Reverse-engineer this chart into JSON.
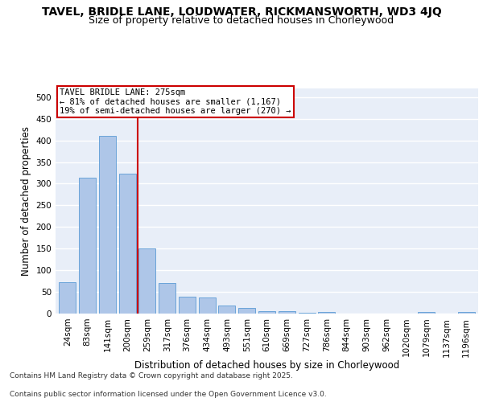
{
  "title": "TAVEL, BRIDLE LANE, LOUDWATER, RICKMANSWORTH, WD3 4JQ",
  "subtitle": "Size of property relative to detached houses in Chorleywood",
  "xlabel": "Distribution of detached houses by size in Chorleywood",
  "ylabel": "Number of detached properties",
  "categories": [
    "24sqm",
    "83sqm",
    "141sqm",
    "200sqm",
    "259sqm",
    "317sqm",
    "376sqm",
    "434sqm",
    "493sqm",
    "551sqm",
    "610sqm",
    "669sqm",
    "727sqm",
    "786sqm",
    "844sqm",
    "903sqm",
    "962sqm",
    "1020sqm",
    "1079sqm",
    "1137sqm",
    "1196sqm"
  ],
  "values": [
    73,
    314,
    410,
    324,
    150,
    70,
    39,
    37,
    19,
    13,
    6,
    6,
    1,
    4,
    0,
    0,
    0,
    0,
    3,
    0,
    3
  ],
  "bar_color": "#aec6e8",
  "bar_edge_color": "#5b9bd5",
  "vline_x": 3.5,
  "vline_color": "#cc0000",
  "annotation_title": "TAVEL BRIDLE LANE: 275sqm",
  "annotation_line1": "← 81% of detached houses are smaller (1,167)",
  "annotation_line2": "19% of semi-detached houses are larger (270) →",
  "annotation_box_color": "#cc0000",
  "background_color": "#e8eef8",
  "grid_color": "#ffffff",
  "ylim": [
    0,
    520
  ],
  "yticks": [
    0,
    50,
    100,
    150,
    200,
    250,
    300,
    350,
    400,
    450,
    500
  ],
  "footer_line1": "Contains HM Land Registry data © Crown copyright and database right 2025.",
  "footer_line2": "Contains public sector information licensed under the Open Government Licence v3.0.",
  "title_fontsize": 10,
  "subtitle_fontsize": 9,
  "axis_label_fontsize": 8.5,
  "tick_fontsize": 7.5,
  "annotation_fontsize": 7.5,
  "footer_fontsize": 6.5
}
